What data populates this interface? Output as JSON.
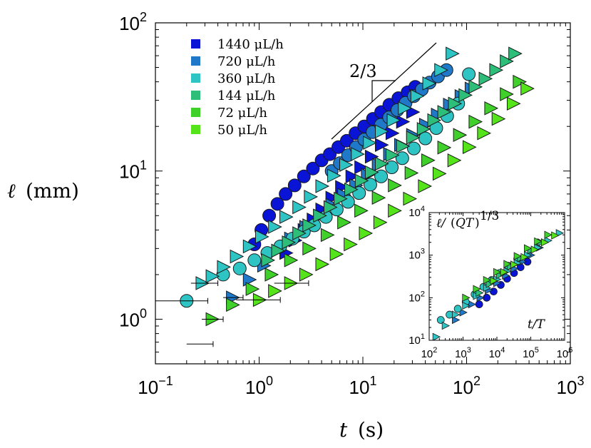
{
  "chart_data": [
    {
      "type": "scatter",
      "title": "",
      "xlabel": "t (s)",
      "ylabel": "ℓ (mm)",
      "xscale": "log",
      "yscale": "log",
      "xlim": [
        0.1,
        1000
      ],
      "ylim": [
        0.5,
        100
      ],
      "x_ticks": [
        {
          "value": 0.1,
          "base": "10",
          "exp": "−1"
        },
        {
          "value": 1,
          "base": "10",
          "exp": "0"
        },
        {
          "value": 10,
          "base": "10",
          "exp": "1"
        },
        {
          "value": 100,
          "base": "10",
          "exp": "2"
        },
        {
          "value": 1000,
          "base": "10",
          "exp": "3"
        }
      ],
      "y_ticks": [
        {
          "value": 1,
          "base": "10",
          "exp": "0"
        },
        {
          "value": 10,
          "base": "10",
          "exp": "1"
        },
        {
          "value": 100,
          "base": "10",
          "exp": "2"
        }
      ],
      "grid": false,
      "legend_position": "top-left",
      "slope_annotation": {
        "label": "2/3",
        "x": [
          5,
          50
        ],
        "y": [
          15,
          73
        ]
      },
      "series": [
        {
          "name": "1440 μL/h",
          "color": "#0a14d6",
          "marker": "circle",
          "x": [
            0.9,
            1.05,
            1.25,
            1.5,
            1.8,
            2.2,
            2.7,
            3.3,
            4.0,
            4.8,
            5.8,
            7.0,
            8.5,
            10.3,
            12.5,
            15,
            18,
            22,
            27,
            32
          ],
          "y": [
            3.2,
            4.0,
            5.0,
            6.0,
            7.0,
            8.0,
            9.2,
            10.4,
            11.8,
            13.0,
            14.5,
            16.0,
            18.0,
            20.0,
            22.5,
            25.0,
            28.0,
            31.0,
            34.0,
            37.0
          ]
        },
        {
          "name": "1440 μL/h",
          "color": "#0a14d6",
          "marker": "triangle",
          "x": [
            1.8,
            2.2,
            2.7,
            3.3,
            4.0,
            5.0,
            6.2,
            7.8,
            9.5,
            12,
            15,
            19,
            24,
            30
          ],
          "y": [
            2.8,
            3.4,
            4.0,
            4.7,
            5.5,
            6.6,
            7.8,
            9.2,
            10.6,
            12.5,
            15.0,
            18.0,
            21.5,
            25.0
          ]
        },
        {
          "name": "720 μL/h",
          "color": "#1f78c8",
          "marker": "circle",
          "x": [
            5,
            6,
            7.2,
            8.6,
            10.3,
            12.4,
            14.9,
            17.9,
            21.5,
            25.8,
            31,
            37,
            44,
            53,
            64
          ],
          "y": [
            10,
            11.3,
            12.8,
            14.5,
            16.3,
            18.3,
            20.5,
            23,
            25.8,
            28.8,
            32,
            35.5,
            39.5,
            43.5,
            48
          ]
        },
        {
          "name": "720 μL/h",
          "color": "#1f78c8",
          "marker": "triangle",
          "x": [
            0.55,
            0.8,
            1.1,
            1.5,
            2.0,
            2.8,
            3.8,
            5.0,
            6.5,
            8.5,
            11,
            14,
            18,
            23,
            30,
            40,
            52,
            68,
            88,
            110
          ],
          "y": [
            1.4,
            1.85,
            2.3,
            2.9,
            3.5,
            4.2,
            5.0,
            5.9,
            6.9,
            8.0,
            9.4,
            11.0,
            13.0,
            15.0,
            17.5,
            20.5,
            24.0,
            28.0,
            32.0,
            36.0
          ]
        },
        {
          "name": "360 μL/h",
          "color": "#2ec4c4",
          "marker": "circle",
          "x": [
            0.2,
            0.45,
            0.65,
            0.9,
            1.2,
            1.6,
            2.1,
            2.7,
            3.4,
            4.4,
            5.6,
            7.2,
            9.2,
            11.8,
            15,
            19,
            24,
            31,
            40,
            51,
            65,
            83,
            105
          ],
          "y": [
            1.33,
            2.0,
            2.2,
            2.5,
            2.8,
            3.1,
            3.5,
            3.9,
            4.3,
            4.9,
            5.5,
            6.2,
            7.1,
            8.1,
            9.2,
            10.6,
            12.2,
            14.2,
            16.6,
            19.5,
            23.5,
            28.5,
            45
          ]
        },
        {
          "name": "360 μL/h",
          "color": "#2ec4c4",
          "marker": "triangle",
          "x": [
            0.28,
            0.35,
            0.45,
            0.6,
            0.8,
            1.05,
            1.4,
            1.8,
            2.4,
            3.1,
            4.0,
            5.2,
            6.8,
            8.8,
            11.5,
            15,
            19.5,
            25,
            33,
            43,
            56,
            72
          ],
          "y": [
            1.75,
            1.95,
            2.25,
            2.65,
            3.1,
            3.6,
            4.2,
            4.9,
            5.7,
            6.7,
            7.9,
            9.3,
            11.0,
            13.0,
            15.5,
            18.5,
            22.0,
            26.5,
            32.0,
            39.0,
            48.0,
            62.0
          ]
        },
        {
          "name": "144 μL/h",
          "color": "#2dbf7a",
          "marker": "triangle",
          "x": [
            1.2,
            1.5,
            1.9,
            2.4,
            3.0,
            3.8,
            4.8,
            6.0,
            7.6,
            9.6,
            12,
            15,
            19,
            24,
            30,
            38,
            48,
            60,
            76,
            96,
            120,
            150,
            190,
            240,
            290
          ],
          "y": [
            2.5,
            2.9,
            3.3,
            3.8,
            4.3,
            5.0,
            5.7,
            6.5,
            7.5,
            8.6,
            9.8,
            11.2,
            12.8,
            14.7,
            16.8,
            19.2,
            22,
            25,
            28.5,
            32.5,
            37,
            42,
            48,
            55,
            62
          ]
        },
        {
          "name": "72 μL/h",
          "color": "#3fd12a",
          "marker": "triangle",
          "x": [
            0.35,
            0.55,
            0.85,
            1.3,
            2.0,
            3.0,
            4.5,
            6.5,
            9.5,
            14,
            20,
            29,
            42,
            60,
            85,
            120,
            170,
            240,
            320
          ],
          "y": [
            1.0,
            1.25,
            1.6,
            2.0,
            2.5,
            3.0,
            3.7,
            4.5,
            5.4,
            6.6,
            8.0,
            9.7,
            11.8,
            14.4,
            17.5,
            21.5,
            26.5,
            33.0,
            40.0
          ]
        },
        {
          "name": "50 μL/h",
          "color": "#55e31a",
          "marker": "triangle",
          "x": [
            1.0,
            1.4,
            2.0,
            2.8,
            4.0,
            5.5,
            7.5,
            10.5,
            14.5,
            20,
            28,
            39,
            54,
            75,
            105,
            145,
            200,
            280,
            380
          ],
          "y": [
            1.35,
            1.55,
            1.75,
            2.0,
            2.35,
            2.75,
            3.2,
            3.8,
            4.5,
            5.4,
            6.5,
            7.9,
            9.6,
            11.8,
            14.5,
            18.0,
            22.5,
            28.5,
            36.0
          ]
        }
      ]
    },
    {
      "type": "scatter",
      "title": "",
      "xlabel": "t/T",
      "ylabel": "ℓ/(QT)^(1/3)",
      "xscale": "log",
      "yscale": "log",
      "xlim": [
        100,
        1000000
      ],
      "ylim": [
        10,
        10000
      ],
      "x_ticks": [
        {
          "value": 100,
          "base": "10",
          "exp": "2"
        },
        {
          "value": 1000,
          "base": "10",
          "exp": "3"
        },
        {
          "value": 10000,
          "base": "10",
          "exp": "4"
        },
        {
          "value": 100000,
          "base": "10",
          "exp": "5"
        },
        {
          "value": 1000000,
          "base": "10",
          "exp": "6"
        }
      ],
      "y_ticks": [
        {
          "value": 10,
          "base": "10",
          "exp": "1"
        },
        {
          "value": 100,
          "base": "10",
          "exp": "2"
        },
        {
          "value": 1000,
          "base": "10",
          "exp": "3"
        },
        {
          "value": 10000,
          "base": "10",
          "exp": "4"
        }
      ],
      "grid": false,
      "series": [
        {
          "color": "#0a14d6",
          "marker": "circle",
          "x": [
            3000,
            5000,
            8000,
            13000,
            20000,
            32000,
            50000,
            80000
          ],
          "y": [
            70,
            100,
            140,
            200,
            280,
            380,
            520,
            700
          ]
        },
        {
          "color": "#1f78c8",
          "marker": "triangle",
          "x": [
            600,
            1000,
            1800,
            3200,
            5600,
            10000,
            18000,
            32000,
            56000,
            100000,
            180000
          ],
          "y": [
            30,
            45,
            70,
            100,
            150,
            220,
            330,
            480,
            700,
            1000,
            1500
          ]
        },
        {
          "color": "#2ec4c4",
          "marker": "circle",
          "x": [
            220,
            400,
            700,
            1200,
            2200,
            4000,
            7000,
            12000,
            22000,
            40000
          ],
          "y": [
            30,
            40,
            55,
            80,
            120,
            180,
            260,
            380,
            560,
            820
          ]
        },
        {
          "color": "#2ec4c4",
          "marker": "triangle",
          "x": [
            160,
            300,
            600,
            1200,
            2500,
            5000,
            10000,
            20000,
            40000,
            80000,
            160000,
            320000,
            700000
          ],
          "y": [
            12,
            22,
            40,
            65,
            110,
            170,
            270,
            420,
            650,
            1000,
            1500,
            2200,
            3300
          ]
        },
        {
          "color": "#2dbf7a",
          "marker": "triangle",
          "x": [
            3000,
            6000,
            12000,
            25000,
            50000,
            100000,
            200000
          ],
          "y": [
            130,
            210,
            340,
            540,
            850,
            1300,
            2000
          ]
        },
        {
          "color": "#3fd12a",
          "marker": "triangle",
          "x": [
            1200,
            2500,
            5000,
            10000,
            20000,
            40000,
            80000,
            160000,
            320000
          ],
          "y": [
            100,
            160,
            260,
            400,
            620,
            950,
            1450,
            2100,
            3000
          ]
        },
        {
          "color": "#55e31a",
          "marker": "triangle",
          "x": [
            8000,
            16000,
            32000,
            64000,
            128000,
            256000,
            512000
          ],
          "y": [
            250,
            400,
            600,
            900,
            1350,
            2000,
            2900
          ]
        }
      ]
    }
  ],
  "legend": [
    {
      "label": "1440 μL/h",
      "color": "#0a14d6"
    },
    {
      "label": "720 μL/h",
      "color": "#1f78c8"
    },
    {
      "label": "360 μL/h",
      "color": "#2ec4c4"
    },
    {
      "label": "144 μL/h",
      "color": "#2dbf7a"
    },
    {
      "label": "72 μL/h",
      "color": "#3fd12a"
    },
    {
      "label": "50 μL/h",
      "color": "#55e31a"
    }
  ]
}
